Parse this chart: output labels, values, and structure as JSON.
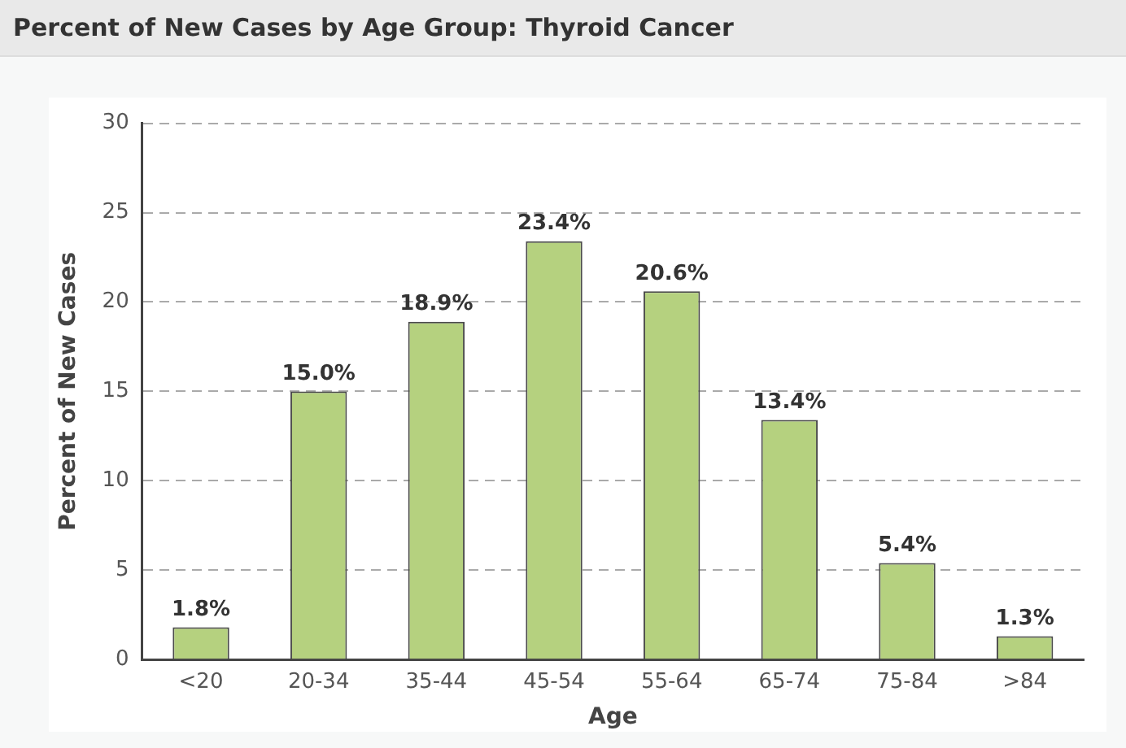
{
  "chart_data": {
    "type": "bar",
    "title": "Percent of New Cases by Age Group: Thyroid Cancer",
    "xlabel": "Age",
    "ylabel": "Percent of New Cases",
    "categories": [
      "<20",
      "20-34",
      "35-44",
      "45-54",
      "55-64",
      "65-74",
      "75-84",
      ">84"
    ],
    "values": [
      1.8,
      15.0,
      18.9,
      23.4,
      20.6,
      13.4,
      5.4,
      1.3
    ],
    "value_labels": [
      "1.8%",
      "15.0%",
      "18.9%",
      "23.4%",
      "20.6%",
      "13.4%",
      "5.4%",
      "1.3%"
    ],
    "color": "#b5d17f",
    "ylim": [
      0,
      30
    ],
    "yticks": [
      0,
      5,
      10,
      15,
      20,
      25,
      30
    ],
    "grid": "y",
    "legend": false
  }
}
